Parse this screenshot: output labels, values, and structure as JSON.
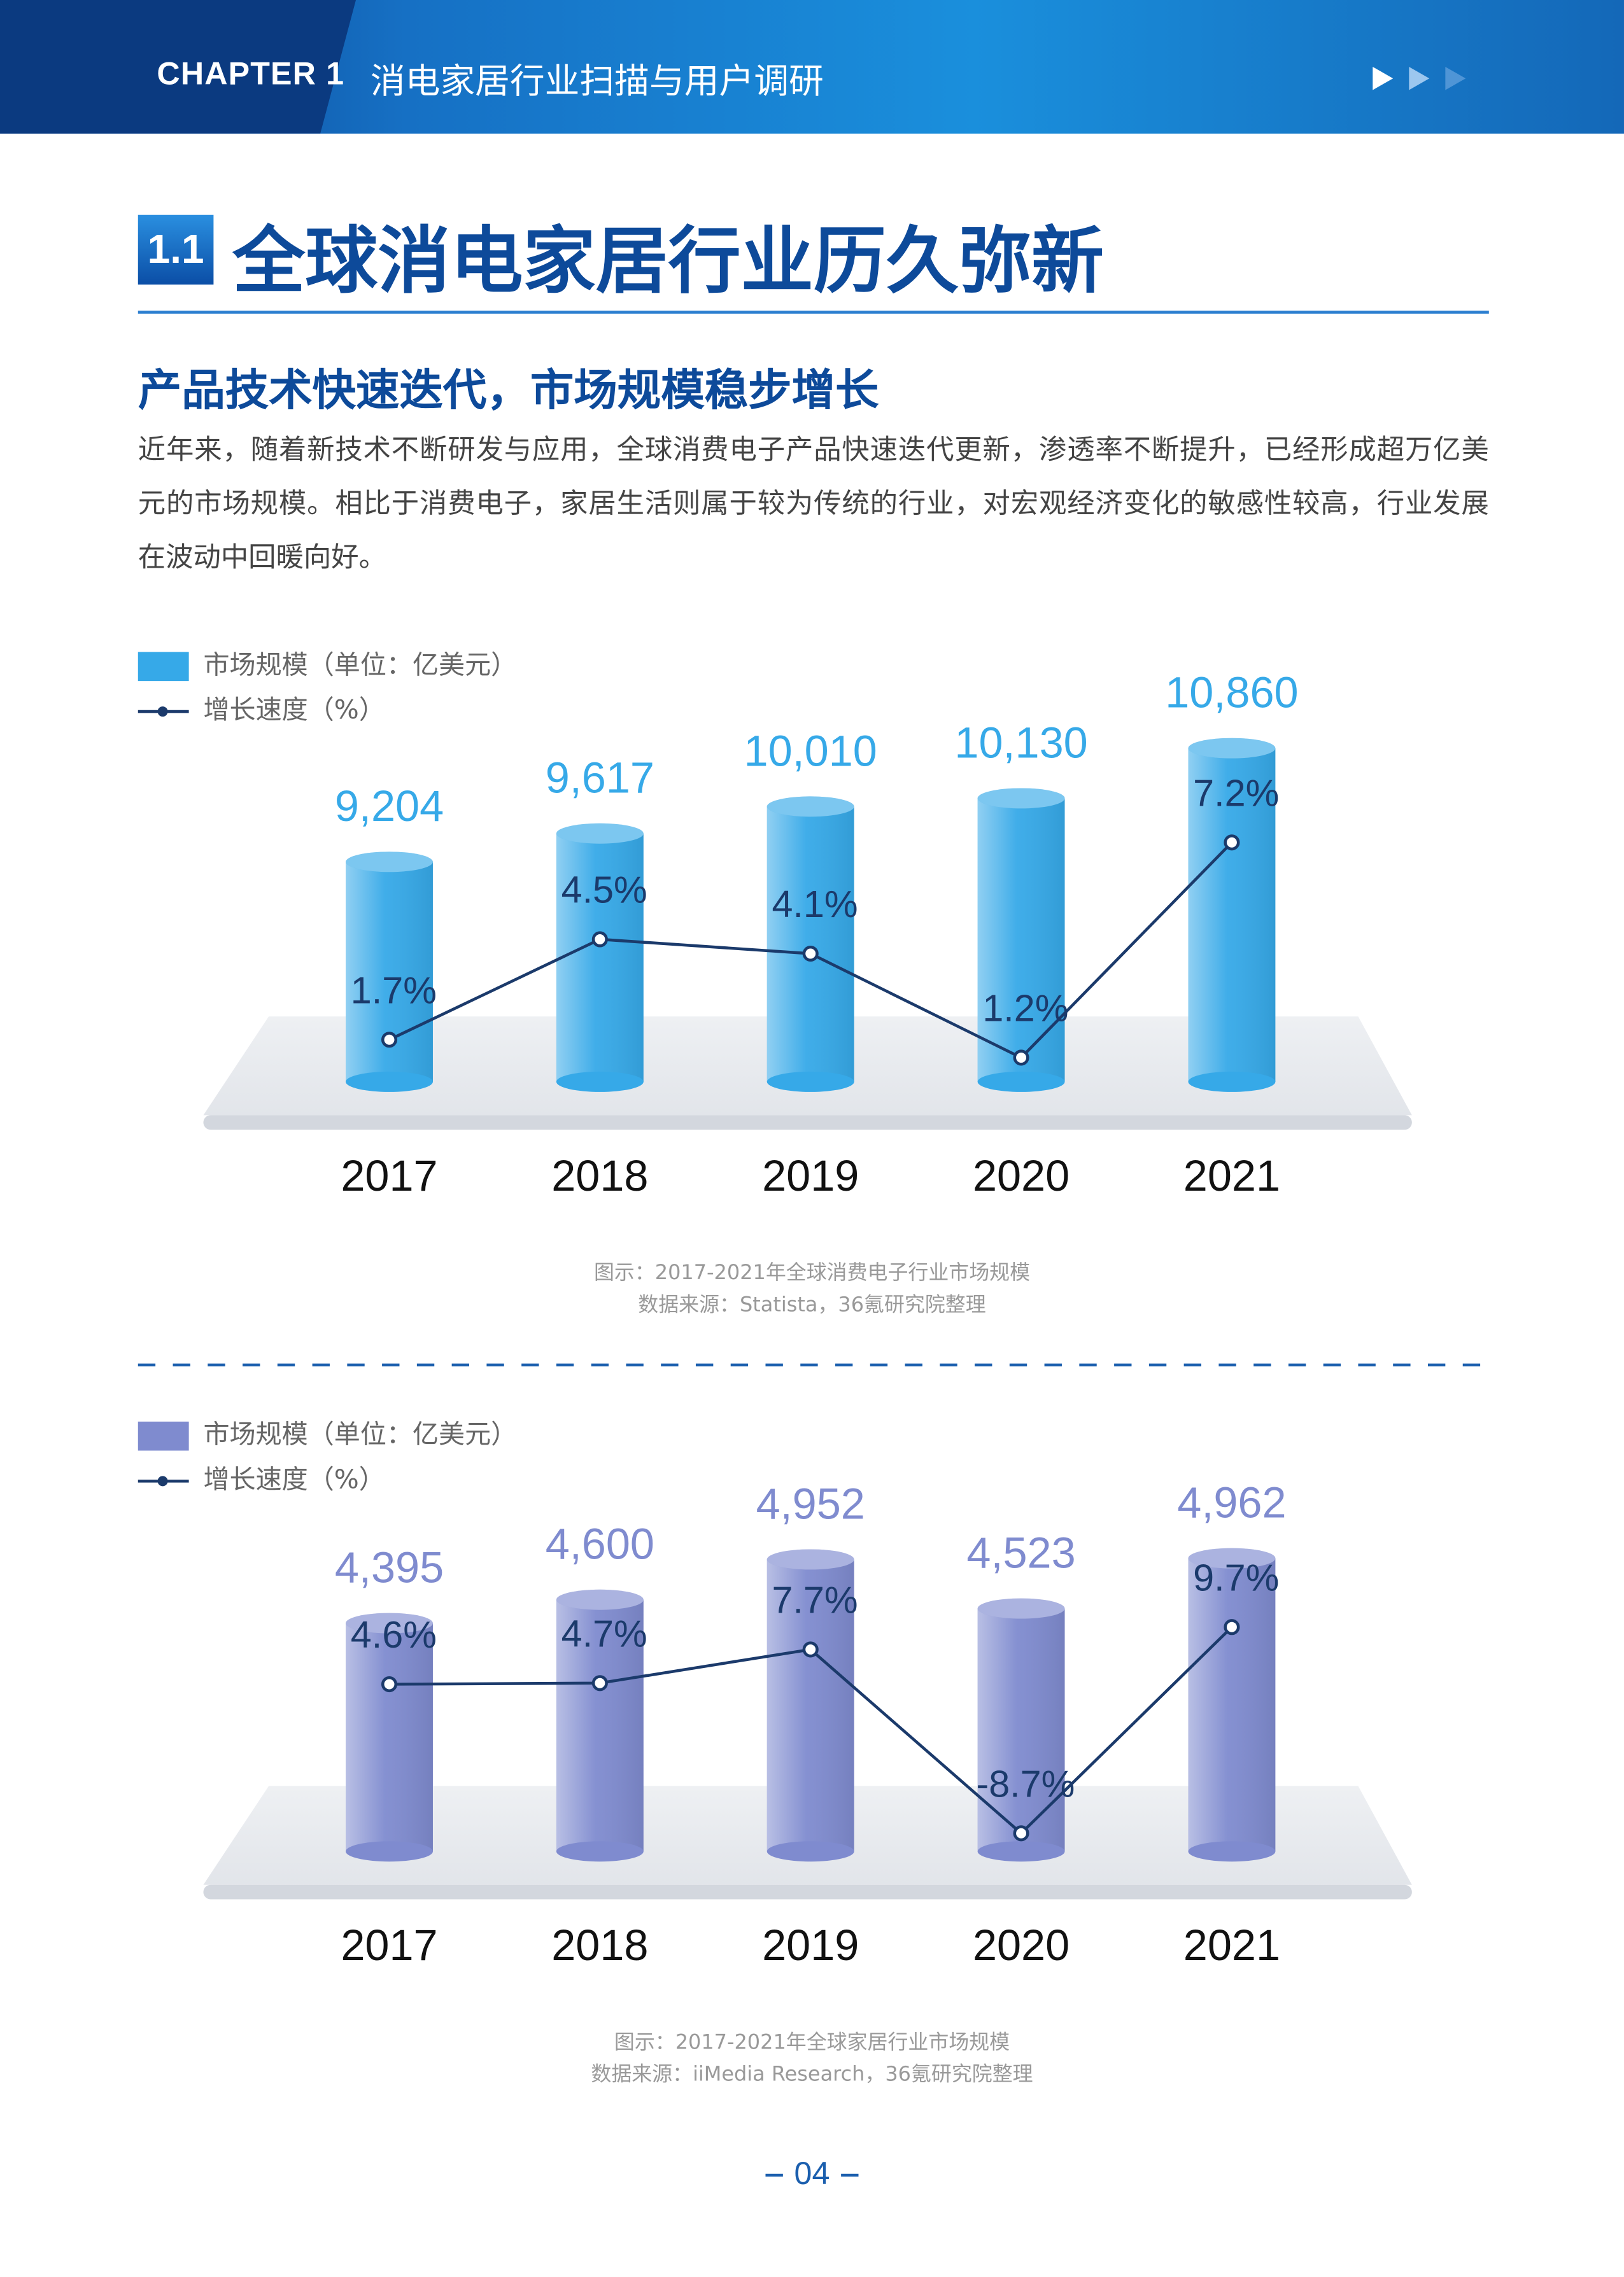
{
  "header": {
    "chapter": "CHAPTER 1",
    "title": "消电家居行业扫描与用户调研"
  },
  "section": {
    "number": "1.1",
    "title": "全球消电家居行业历久弥新"
  },
  "subtitle": "产品技术快速迭代，市场规模稳步增长",
  "paragraph": "近年来，随着新技术不断研发与应用，全球消费电子产品快速迭代更新，渗透率不断提升，已经形成超万亿美元的市场规模。相比于消费电子，家居生活则属于较为传统的行业，对宏观经济变化的敏感性较高，行业发展在波动中回暖向好。",
  "page_number": "04",
  "chart_data": [
    {
      "type": "bar",
      "categories": [
        "2017",
        "2018",
        "2019",
        "2020",
        "2021"
      ],
      "series": [
        {
          "name": "市场规模（单位：亿美元）",
          "color": "#36a9e8",
          "values": [
            9204,
            9617,
            10010,
            10130,
            10860
          ],
          "value_labels": [
            "9,204",
            "9,617",
            "10,010",
            "10,130",
            "10,860"
          ]
        },
        {
          "name": "增长速度（%）",
          "type": "line",
          "axis": "y2",
          "color": "#1b3a6b",
          "values": [
            1.7,
            4.5,
            4.1,
            1.2,
            7.2
          ],
          "value_labels": [
            "1.7%",
            "4.5%",
            "4.1%",
            "1.2%",
            "7.2%"
          ]
        }
      ],
      "ylim": [
        6000,
        11500
      ],
      "y2lim": [
        0,
        10
      ],
      "caption": "图示：2017-2021年全球消费电子行业市场规模",
      "source": "数据来源：Statista，36氪研究院整理"
    },
    {
      "type": "bar",
      "categories": [
        "2017",
        "2018",
        "2019",
        "2020",
        "2021"
      ],
      "series": [
        {
          "name": "市场规模（单位：亿美元）",
          "color": "#7f8bcf",
          "values": [
            4395,
            4600,
            4952,
            4523,
            4962
          ],
          "value_labels": [
            "4,395",
            "4,600",
            "4,952",
            "4,523",
            "4,962"
          ]
        },
        {
          "name": "增长速度（%）",
          "type": "line",
          "axis": "y2",
          "color": "#1b3a6b",
          "values": [
            4.6,
            4.7,
            7.7,
            -8.7,
            9.7
          ],
          "value_labels": [
            "4.6%",
            "4.7%",
            "7.7%",
            "-8.7%",
            "9.7%"
          ]
        }
      ],
      "ylim": [
        2400,
        5700
      ],
      "y2lim": [
        -12,
        20
      ],
      "caption": "图示：2017-2021年全球家居行业市场规模",
      "source": "数据来源：iiMedia Research，36氪研究院整理"
    }
  ]
}
